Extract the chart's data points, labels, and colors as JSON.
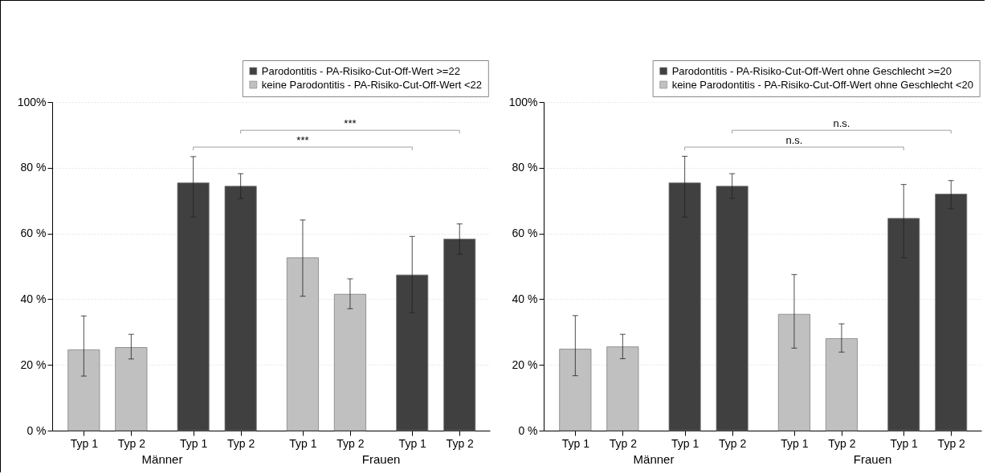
{
  "chart_data": [
    {
      "type": "bar",
      "categories": [
        "Typ 1",
        "Typ 2",
        "Typ 1",
        "Typ 2",
        "Typ 1",
        "Typ 2",
        "Typ 1",
        "Typ 2"
      ],
      "series": [
        {
          "name": "Parodontitis - PA-Risiko-Cut-Off-Wert >=22",
          "color": "#404040",
          "values": [
            null,
            null,
            75.4,
            74.4,
            null,
            null,
            47.4,
            58.3
          ],
          "errors": [
            null,
            null,
            [
              65.0,
              83.4
            ],
            [
              70.6,
              78.2
            ],
            null,
            null,
            [
              35.9,
              59.1
            ],
            [
              53.7,
              62.9
            ]
          ]
        },
        {
          "name": "keine Parodontitis - PA-Risiko-Cut-Off-Wert <22",
          "color": "#c0c0c0",
          "values": [
            24.6,
            25.3,
            null,
            null,
            52.6,
            41.5,
            null,
            null
          ],
          "errors": [
            [
              16.6,
              34.9
            ],
            [
              21.8,
              29.3
            ],
            null,
            null,
            [
              40.9,
              64.1
            ],
            [
              37.1,
              46.2
            ],
            null,
            null
          ]
        }
      ],
      "ylim": [
        0,
        100
      ],
      "yticks": [
        {
          "value": 0,
          "label": "0 %"
        },
        {
          "value": 20,
          "label": "20 %"
        },
        {
          "value": 40,
          "label": "40 %"
        },
        {
          "value": 60,
          "label": "60 %"
        },
        {
          "value": 80,
          "label": "80 %"
        },
        {
          "value": 100,
          "label": "100%"
        }
      ],
      "grid": "y",
      "legend": "top right",
      "annotations": [
        "***",
        "***",
        "Männer",
        "Frauen"
      ]
    },
    {
      "type": "bar",
      "categories": [
        "Typ 1",
        "Typ 2",
        "Typ 1",
        "Typ 2",
        "Typ 1",
        "Typ 2",
        "Typ 1",
        "Typ 2"
      ],
      "series": [
        {
          "name": "Parodontitis - PA-Risiko-Cut-Off-Wert ohne Geschlecht >=20",
          "color": "#404040",
          "values": [
            null,
            null,
            75.4,
            74.4,
            null,
            null,
            64.6,
            72.0
          ],
          "errors": [
            null,
            null,
            [
              65.0,
              83.5
            ],
            [
              70.7,
              78.2
            ],
            null,
            null,
            [
              52.6,
              74.9
            ],
            [
              67.5,
              76.1
            ]
          ]
        },
        {
          "name": "keine Parodontitis - PA-Risiko-Cut-Off-Wert ohne Geschlecht <20",
          "color": "#c0c0c0",
          "values": [
            24.8,
            25.5,
            null,
            null,
            35.4,
            28.0,
            null,
            null
          ],
          "errors": [
            [
              16.7,
              35.0
            ],
            [
              21.9,
              29.3
            ],
            null,
            null,
            [
              25.1,
              47.5
            ],
            [
              23.9,
              32.5
            ],
            null,
            null
          ]
        }
      ],
      "ylim": [
        0,
        100
      ],
      "yticks": [
        {
          "value": 0,
          "label": "0 %"
        },
        {
          "value": 20,
          "label": "20 %"
        },
        {
          "value": 40,
          "label": "40 %"
        },
        {
          "value": 60,
          "label": "60 %"
        },
        {
          "value": 80,
          "label": "80 %"
        },
        {
          "value": 100,
          "label": "100%"
        }
      ],
      "grid": "y",
      "legend": "top right",
      "annotations": [
        "n.s.",
        "n.s.",
        "Männer",
        "Frauen"
      ]
    }
  ]
}
